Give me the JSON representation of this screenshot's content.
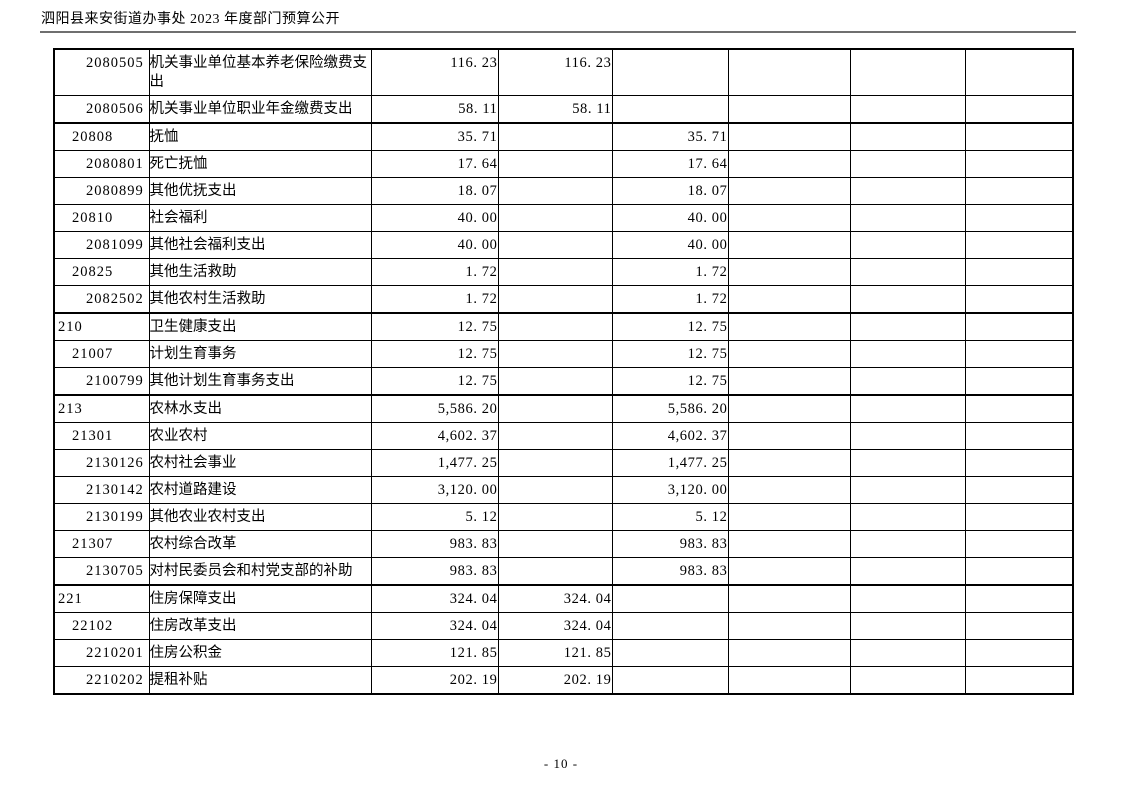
{
  "page": {
    "header_title": "泗阳县来安街道办事处 2023 年度部门预算公开",
    "footer_page_number": "- 10 -"
  },
  "table": {
    "rows": [
      {
        "code": "2080505",
        "level": 3,
        "name": "机关事业单位基本养老保险缴费支出",
        "amounts": [
          "116. 23",
          "116. 23",
          "",
          "",
          "",
          ""
        ],
        "thick_top": false
      },
      {
        "code": "2080506",
        "level": 3,
        "name": "机关事业单位职业年金缴费支出",
        "amounts": [
          "58. 11",
          "58. 11",
          "",
          "",
          "",
          ""
        ],
        "thick_top": false
      },
      {
        "code": "20808",
        "level": 2,
        "name": "抚恤",
        "amounts": [
          "35. 71",
          "",
          "35. 71",
          "",
          "",
          ""
        ],
        "thick_top": true
      },
      {
        "code": "2080801",
        "level": 3,
        "name": "死亡抚恤",
        "amounts": [
          "17. 64",
          "",
          "17. 64",
          "",
          "",
          ""
        ],
        "thick_top": false
      },
      {
        "code": "2080899",
        "level": 3,
        "name": "其他优抚支出",
        "amounts": [
          "18. 07",
          "",
          "18. 07",
          "",
          "",
          ""
        ],
        "thick_top": false
      },
      {
        "code": "20810",
        "level": 2,
        "name": "社会福利",
        "amounts": [
          "40. 00",
          "",
          "40. 00",
          "",
          "",
          ""
        ],
        "thick_top": false
      },
      {
        "code": "2081099",
        "level": 3,
        "name": "其他社会福利支出",
        "amounts": [
          "40. 00",
          "",
          "40. 00",
          "",
          "",
          ""
        ],
        "thick_top": false
      },
      {
        "code": "20825",
        "level": 2,
        "name": "其他生活救助",
        "amounts": [
          "1. 72",
          "",
          "1. 72",
          "",
          "",
          ""
        ],
        "thick_top": false
      },
      {
        "code": "2082502",
        "level": 3,
        "name": "其他农村生活救助",
        "amounts": [
          "1. 72",
          "",
          "1. 72",
          "",
          "",
          ""
        ],
        "thick_top": false
      },
      {
        "code": "210",
        "level": 1,
        "name": "卫生健康支出",
        "amounts": [
          "12. 75",
          "",
          "12. 75",
          "",
          "",
          ""
        ],
        "thick_top": true
      },
      {
        "code": "21007",
        "level": 2,
        "name": "计划生育事务",
        "amounts": [
          "12. 75",
          "",
          "12. 75",
          "",
          "",
          ""
        ],
        "thick_top": false
      },
      {
        "code": "2100799",
        "level": 3,
        "name": "其他计划生育事务支出",
        "amounts": [
          "12. 75",
          "",
          "12. 75",
          "",
          "",
          ""
        ],
        "thick_top": false
      },
      {
        "code": "213",
        "level": 1,
        "name": "农林水支出",
        "amounts": [
          "5,586. 20",
          "",
          "5,586. 20",
          "",
          "",
          ""
        ],
        "thick_top": true
      },
      {
        "code": "21301",
        "level": 2,
        "name": "农业农村",
        "amounts": [
          "4,602. 37",
          "",
          "4,602. 37",
          "",
          "",
          ""
        ],
        "thick_top": false
      },
      {
        "code": "2130126",
        "level": 3,
        "name": "农村社会事业",
        "amounts": [
          "1,477. 25",
          "",
          "1,477. 25",
          "",
          "",
          ""
        ],
        "thick_top": false
      },
      {
        "code": "2130142",
        "level": 3,
        "name": "农村道路建设",
        "amounts": [
          "3,120. 00",
          "",
          "3,120. 00",
          "",
          "",
          ""
        ],
        "thick_top": false
      },
      {
        "code": "2130199",
        "level": 3,
        "name": "其他农业农村支出",
        "amounts": [
          "5. 12",
          "",
          "5. 12",
          "",
          "",
          ""
        ],
        "thick_top": false
      },
      {
        "code": "21307",
        "level": 2,
        "name": "农村综合改革",
        "amounts": [
          "983. 83",
          "",
          "983. 83",
          "",
          "",
          ""
        ],
        "thick_top": false
      },
      {
        "code": "2130705",
        "level": 3,
        "name": "对村民委员会和村党支部的补助",
        "amounts": [
          "983. 83",
          "",
          "983. 83",
          "",
          "",
          ""
        ],
        "thick_top": false
      },
      {
        "code": "221",
        "level": 1,
        "name": "住房保障支出",
        "amounts": [
          "324. 04",
          "324. 04",
          "",
          "",
          "",
          ""
        ],
        "thick_top": true
      },
      {
        "code": "22102",
        "level": 2,
        "name": "住房改革支出",
        "amounts": [
          "324. 04",
          "324. 04",
          "",
          "",
          "",
          ""
        ],
        "thick_top": false
      },
      {
        "code": "2210201",
        "level": 3,
        "name": "住房公积金",
        "amounts": [
          "121. 85",
          "121. 85",
          "",
          "",
          "",
          ""
        ],
        "thick_top": false
      },
      {
        "code": "2210202",
        "level": 3,
        "name": "提租补贴",
        "amounts": [
          "202. 19",
          "202. 19",
          "",
          "",
          "",
          ""
        ],
        "thick_top": false
      }
    ]
  }
}
